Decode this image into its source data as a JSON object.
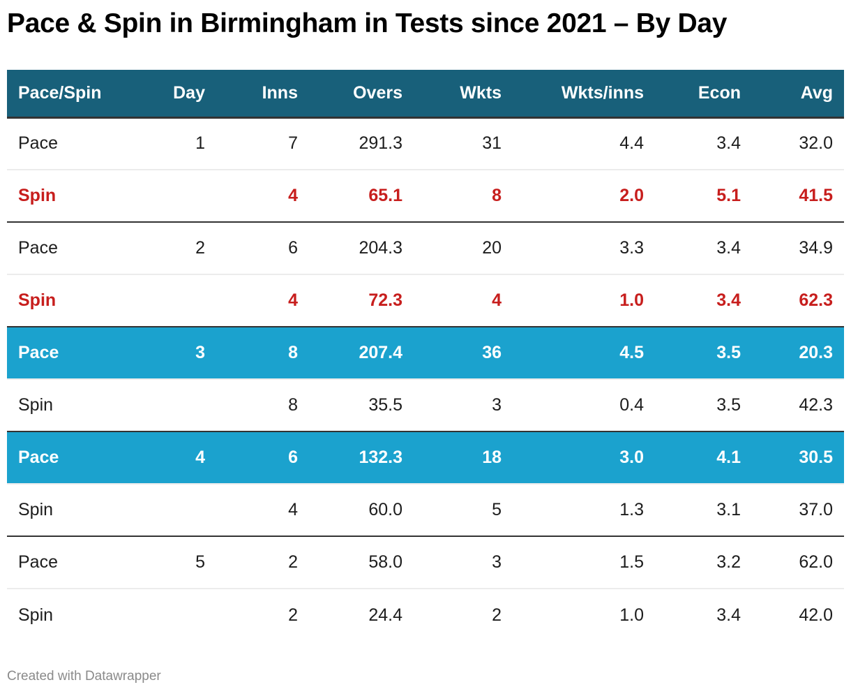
{
  "title": "Pace & Spin in Birmingham in Tests since 2021 – By Day",
  "colors": {
    "header_bg": "#18607a",
    "highlight_row_bg": "#1ba2ce",
    "highlight_text": "#ffffff",
    "emphasis_text": "#c71e1d",
    "divider_dark": "#333333",
    "divider_light": "#ececec"
  },
  "table": {
    "columns": [
      "Pace/Spin",
      "Day",
      "Inns",
      "Overs",
      "Wkts",
      "Wkts/inns",
      "Econ",
      "Avg"
    ],
    "rows": [
      {
        "style": "normal",
        "cells": [
          "Pace",
          "1",
          "7",
          "291.3",
          "31",
          "4.4",
          "3.4",
          "32.0"
        ]
      },
      {
        "style": "red",
        "cells": [
          "Spin",
          "",
          "4",
          "65.1",
          "8",
          "2.0",
          "5.1",
          "41.5"
        ]
      },
      {
        "style": "normal",
        "cells": [
          "Pace",
          "2",
          "6",
          "204.3",
          "20",
          "3.3",
          "3.4",
          "34.9"
        ]
      },
      {
        "style": "red",
        "cells": [
          "Spin",
          "",
          "4",
          "72.3",
          "4",
          "1.0",
          "3.4",
          "62.3"
        ]
      },
      {
        "style": "highlight",
        "cells": [
          "Pace",
          "3",
          "8",
          "207.4",
          "36",
          "4.5",
          "3.5",
          "20.3"
        ]
      },
      {
        "style": "normal",
        "cells": [
          "Spin",
          "",
          "8",
          "35.5",
          "3",
          "0.4",
          "3.5",
          "42.3"
        ]
      },
      {
        "style": "highlight",
        "cells": [
          "Pace",
          "4",
          "6",
          "132.3",
          "18",
          "3.0",
          "4.1",
          "30.5"
        ]
      },
      {
        "style": "normal",
        "cells": [
          "Spin",
          "",
          "4",
          "60.0",
          "5",
          "1.3",
          "3.1",
          "37.0"
        ]
      },
      {
        "style": "normal",
        "cells": [
          "Pace",
          "5",
          "2",
          "58.0",
          "3",
          "1.5",
          "3.2",
          "62.0"
        ]
      },
      {
        "style": "normal",
        "cells": [
          "Spin",
          "",
          "2",
          "24.4",
          "2",
          "1.0",
          "3.4",
          "42.0"
        ]
      }
    ]
  },
  "chart_data": {
    "type": "table",
    "title": "Pace & Spin in Birmingham in Tests since 2021 – By Day",
    "columns": [
      "Pace/Spin",
      "Day",
      "Inns",
      "Overs",
      "Wkts",
      "Wkts/inns",
      "Econ",
      "Avg"
    ],
    "rows": [
      [
        "Pace",
        1,
        7,
        291.3,
        31,
        4.4,
        3.4,
        32.0
      ],
      [
        "Spin",
        1,
        4,
        65.1,
        8,
        2.0,
        5.1,
        41.5
      ],
      [
        "Pace",
        2,
        6,
        204.3,
        20,
        3.3,
        3.4,
        34.9
      ],
      [
        "Spin",
        2,
        4,
        72.3,
        4,
        1.0,
        3.4,
        62.3
      ],
      [
        "Pace",
        3,
        8,
        207.4,
        36,
        4.5,
        3.5,
        20.3
      ],
      [
        "Spin",
        3,
        8,
        35.5,
        3,
        0.4,
        3.5,
        42.3
      ],
      [
        "Pace",
        4,
        6,
        132.3,
        18,
        3.0,
        4.1,
        30.5
      ],
      [
        "Spin",
        4,
        4,
        60.0,
        5,
        1.3,
        3.1,
        37.0
      ],
      [
        "Pace",
        5,
        2,
        58.0,
        3,
        1.5,
        3.2,
        62.0
      ],
      [
        "Spin",
        5,
        2,
        24.4,
        2,
        1.0,
        3.4,
        42.0
      ]
    ]
  },
  "footer": {
    "credit": "Created with Datawrapper"
  }
}
